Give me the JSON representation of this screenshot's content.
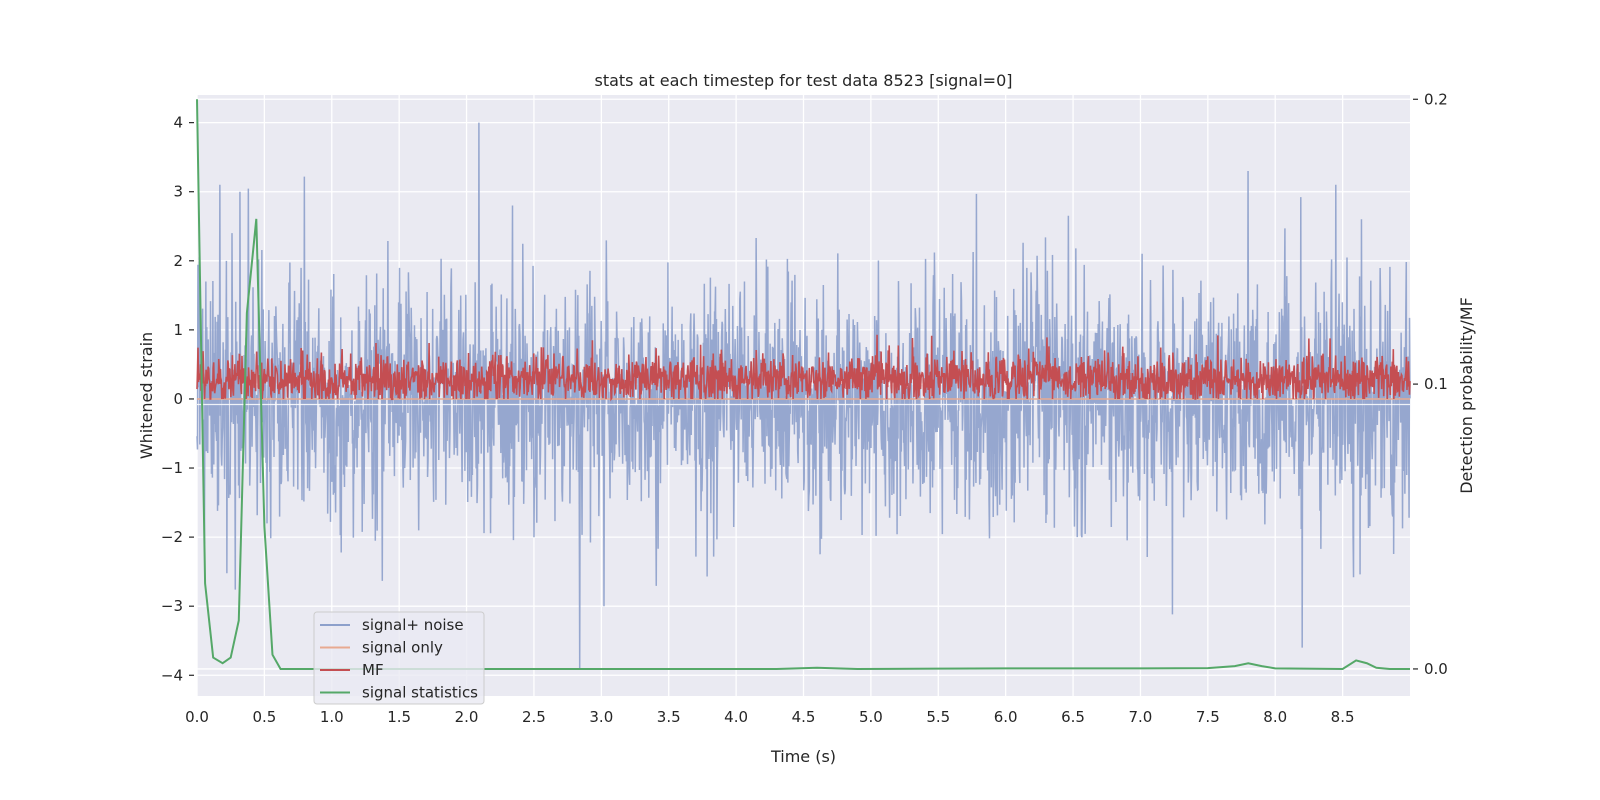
{
  "chart_data": {
    "type": "line",
    "title": "stats at each timestep for test data 8523 [signal=0]",
    "xlabel": "Time (s)",
    "ylabel": "Whitened strain",
    "y2label": "Detection probability/MF",
    "xlim": [
      0.0,
      9.0
    ],
    "ylim": [
      -4.3,
      4.4
    ],
    "y2lim": [
      -0.0095,
      0.2015
    ],
    "xticks": [
      0.0,
      0.5,
      1.0,
      1.5,
      2.0,
      2.5,
      3.0,
      3.5,
      4.0,
      4.5,
      5.0,
      5.5,
      6.0,
      6.5,
      7.0,
      7.5,
      8.0,
      8.5
    ],
    "xtick_labels": [
      "0.0",
      "0.5",
      "1.0",
      "1.5",
      "2.0",
      "2.5",
      "3.0",
      "3.5",
      "4.0",
      "4.5",
      "5.0",
      "5.5",
      "6.0",
      "6.5",
      "7.0",
      "7.5",
      "8.0",
      "8.5"
    ],
    "yticks": [
      4,
      3,
      2,
      1,
      0,
      -1,
      -2,
      -3,
      -4
    ],
    "ytick_labels": [
      "4",
      "3",
      "2",
      "1",
      "0",
      "−1",
      "−2",
      "−3",
      "−4"
    ],
    "y2ticks": [
      0.2,
      0.1,
      0.0
    ],
    "y2tick_labels": [
      "0.2",
      "0.1",
      "0.0"
    ],
    "legend_position": "lower-left",
    "grid": true,
    "series": [
      {
        "name": "signal+ noise",
        "color": "#8da0cb",
        "axis": "left",
        "note": "noise-like whitened strain; envelope ~ +/-2, spikes to ~4",
        "highlight_points": [
          {
            "x": 0.17,
            "y": 3.1
          },
          {
            "x": 0.26,
            "y": 2.4
          },
          {
            "x": 0.32,
            "y": 3.0
          },
          {
            "x": 2.09,
            "y": 4.0
          },
          {
            "x": 2.34,
            "y": 2.8
          },
          {
            "x": 2.84,
            "y": -3.9
          },
          {
            "x": 3.02,
            "y": -3.0
          },
          {
            "x": 7.8,
            "y": 3.3
          },
          {
            "x": 8.2,
            "y": -3.6
          },
          {
            "x": 8.45,
            "y": 3.1
          }
        ]
      },
      {
        "name": "signal only",
        "color": "#e8a990",
        "axis": "left",
        "x": [
          0.0,
          9.0
        ],
        "y": [
          0.0,
          0.0
        ]
      },
      {
        "name": "MF",
        "color": "#c44e52",
        "axis": "left",
        "note": "matched filter output; mostly 0 to ~0.6, peaks ~1.0"
      },
      {
        "name": "signal statistics",
        "color": "#55a868",
        "axis": "right",
        "x": [
          0.0,
          0.06,
          0.12,
          0.19,
          0.25,
          0.31,
          0.37,
          0.44,
          0.5,
          0.56,
          0.62,
          1.0,
          2.0,
          3.0,
          4.0,
          4.3,
          4.6,
          4.9,
          5.5,
          6.0,
          7.0,
          7.5,
          7.7,
          7.8,
          7.9,
          8.0,
          8.5,
          8.6,
          8.68,
          8.75,
          8.85,
          9.0
        ],
        "y": [
          0.2,
          0.03,
          0.004,
          0.002,
          0.004,
          0.017,
          0.125,
          0.158,
          0.05,
          0.005,
          0.0,
          0.0,
          0.0,
          0.0,
          0.0,
          0.0,
          0.0004,
          0.0,
          0.0001,
          0.0002,
          0.0002,
          0.0003,
          0.001,
          0.002,
          0.001,
          0.0002,
          0.0,
          0.003,
          0.002,
          0.0004,
          0.0,
          0.0
        ]
      }
    ]
  }
}
